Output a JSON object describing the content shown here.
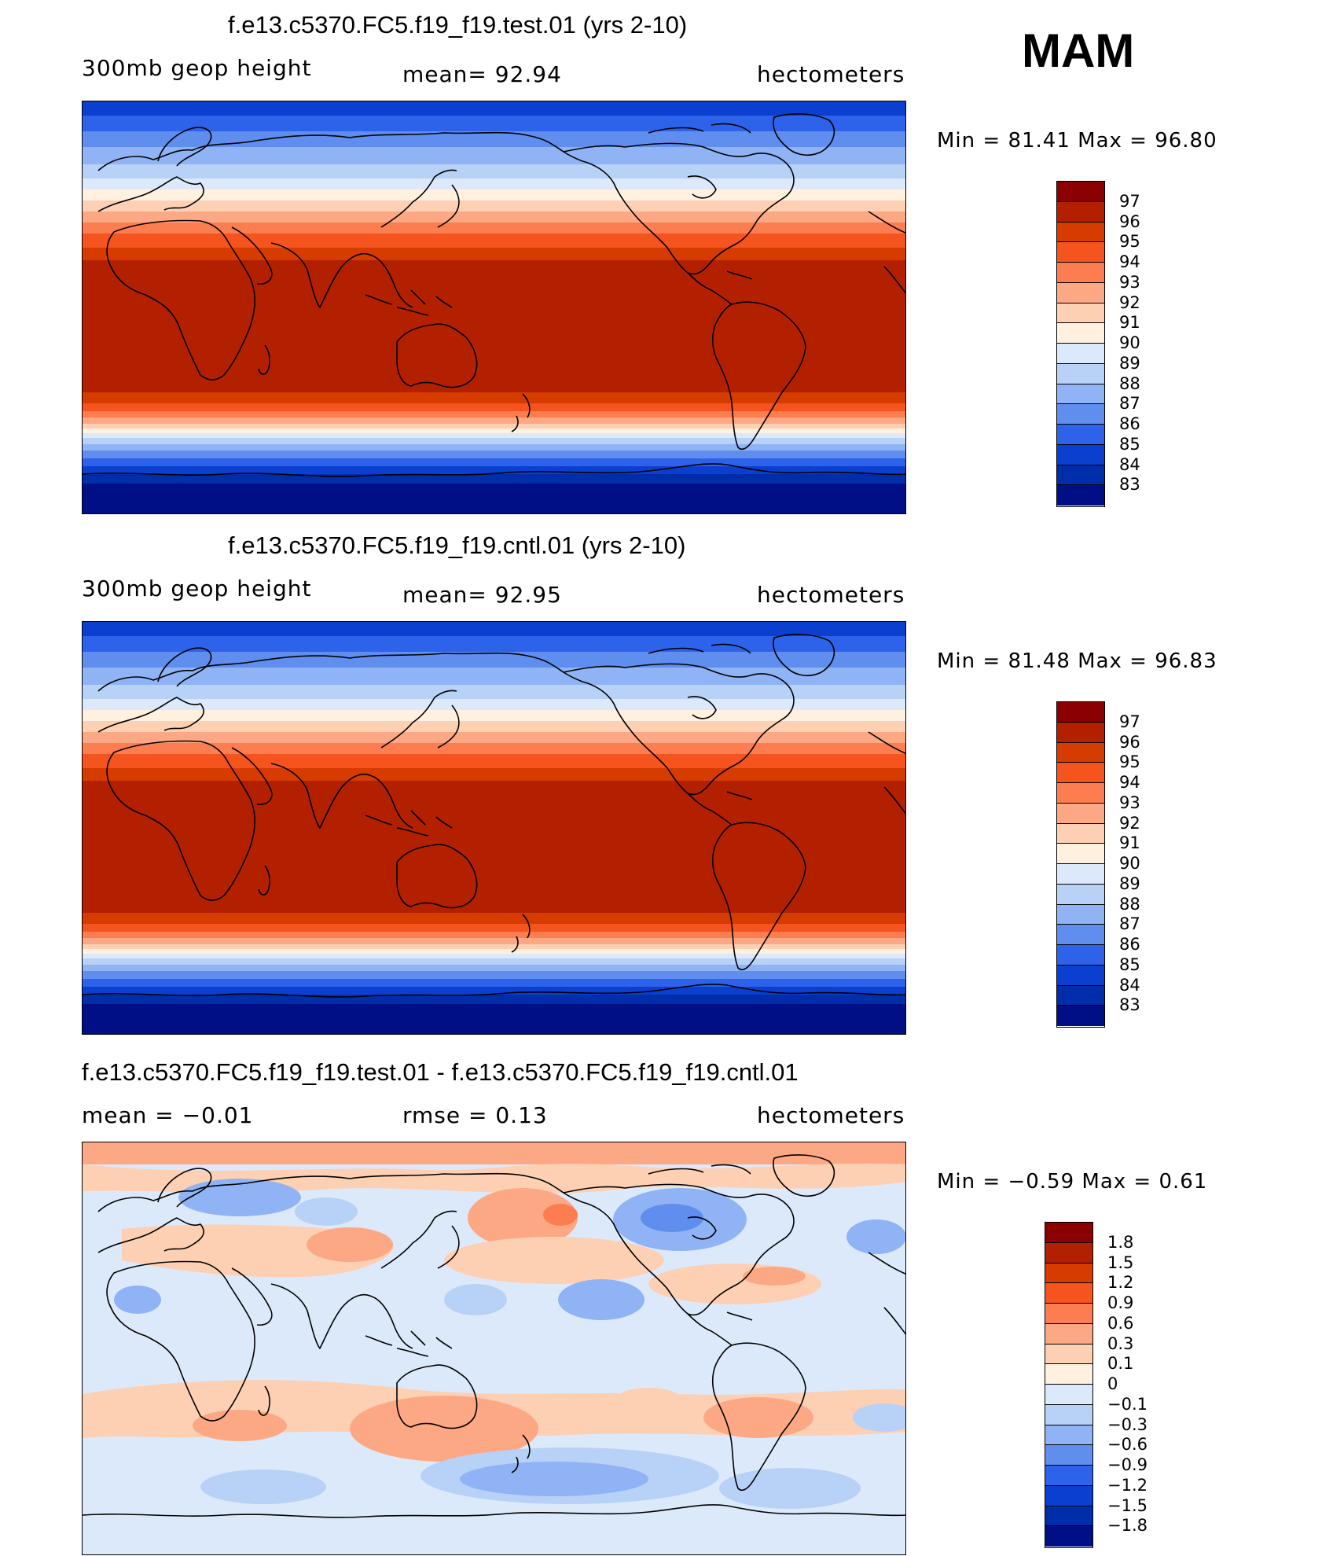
{
  "season": "MAM",
  "panels": [
    {
      "title": "f.e13.c5370.FC5.f19_f19.test.01 (yrs 2-10)",
      "field": "300mb geop height",
      "stat1": "mean=   92.94",
      "units": "hectometers",
      "minmax": "Min =   81.41  Max =   96.80",
      "min": 81.41,
      "max": 96.8
    },
    {
      "title": "f.e13.c5370.FC5.f19_f19.cntl.01 (yrs 2-10)",
      "field": "300mb geop height",
      "stat1": "mean=   92.95",
      "units": "hectometers",
      "minmax": "Min =   81.48  Max =   96.83",
      "min": 81.48,
      "max": 96.83
    },
    {
      "title": "f.e13.c5370.FC5.f19_f19.test.01 - f.e13.c5370.FC5.f19_f19.cntl.01",
      "stat1": "mean =   −0.01",
      "stat2": "rmse =    0.13",
      "units": "hectometers",
      "minmax": "Min =   −0.59  Max =    0.61",
      "min": -0.59,
      "max": 0.61
    }
  ],
  "colorbars": {
    "abs": {
      "levels": [
        "97",
        "96",
        "95",
        "94",
        "93",
        "92",
        "91",
        "90",
        "89",
        "88",
        "87",
        "86",
        "85",
        "84",
        "83"
      ],
      "colors": [
        "#8b0000",
        "#b22000",
        "#d63b00",
        "#f5541f",
        "#fc7d4f",
        "#fda884",
        "#fdd0b4",
        "#fff0e0",
        "#dce9fb",
        "#b8d1f7",
        "#8fb3f5",
        "#5f8eef",
        "#2c63ea",
        "#0b3fd0",
        "#002eaa",
        "#000f86"
      ]
    },
    "diff": {
      "levels": [
        "1.8",
        "1.5",
        "1.2",
        "0.9",
        "0.6",
        "0.3",
        "0.1",
        "0",
        "−0.1",
        "−0.3",
        "−0.6",
        "−0.9",
        "−1.2",
        "−1.5",
        "−1.8"
      ],
      "colors": [
        "#8b0000",
        "#b22000",
        "#d63b00",
        "#f5541f",
        "#fc7d4f",
        "#fda884",
        "#fdd0b4",
        "#fff0e0",
        "#dce9fb",
        "#b8d1f7",
        "#8fb3f5",
        "#5f8eef",
        "#2c63ea",
        "#0b3fd0",
        "#002eaa",
        "#000f86"
      ]
    }
  }
}
